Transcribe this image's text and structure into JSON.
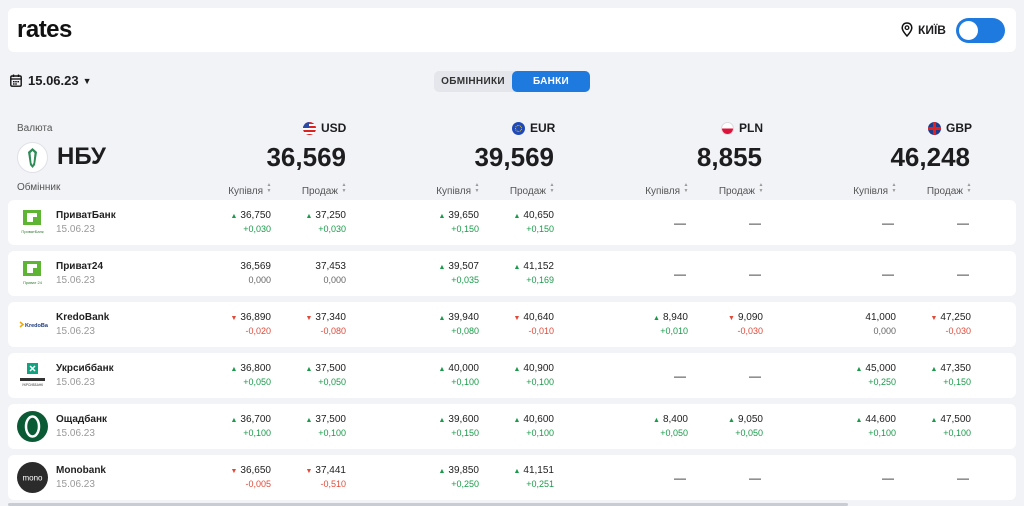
{
  "app": {
    "logo": "rates",
    "city": "КИЇВ"
  },
  "date": "15.06.23",
  "segment": {
    "exchangers": "ОБМІННИКИ",
    "banks": "БАНКИ"
  },
  "valuta_label": "Валюта",
  "nbu": {
    "title": "НБУ"
  },
  "currencies": [
    {
      "code": "USD",
      "nbu": "36,569"
    },
    {
      "code": "EUR",
      "nbu": "39,569"
    },
    {
      "code": "PLN",
      "nbu": "8,855"
    },
    {
      "code": "GBP",
      "nbu": "46,248"
    }
  ],
  "headers": {
    "exchanger": "Обмінник",
    "buy": "Купівля",
    "sell": "Продаж"
  },
  "banks": [
    {
      "name": "ПриватБанк",
      "date": "15.06.23",
      "rates": [
        {
          "buy": {
            "v": "36,750",
            "d": "+0,030",
            "t": "up"
          },
          "sell": {
            "v": "37,250",
            "d": "+0,030",
            "t": "up"
          }
        },
        {
          "buy": {
            "v": "39,650",
            "d": "+0,150",
            "t": "up"
          },
          "sell": {
            "v": "40,650",
            "d": "+0,150",
            "t": "up"
          }
        },
        null,
        null
      ]
    },
    {
      "name": "Приват24",
      "date": "15.06.23",
      "rates": [
        {
          "buy": {
            "v": "36,569",
            "d": "0,000",
            "t": "flat"
          },
          "sell": {
            "v": "37,453",
            "d": "0,000",
            "t": "flat"
          }
        },
        {
          "buy": {
            "v": "39,507",
            "d": "+0,035",
            "t": "up"
          },
          "sell": {
            "v": "41,152",
            "d": "+0,169",
            "t": "up"
          }
        },
        null,
        null
      ]
    },
    {
      "name": "KredoBank",
      "date": "15.06.23",
      "rates": [
        {
          "buy": {
            "v": "36,890",
            "d": "-0,020",
            "t": "down"
          },
          "sell": {
            "v": "37,340",
            "d": "-0,080",
            "t": "down"
          }
        },
        {
          "buy": {
            "v": "39,940",
            "d": "+0,080",
            "t": "up"
          },
          "sell": {
            "v": "40,640",
            "d": "-0,010",
            "t": "down"
          }
        },
        {
          "buy": {
            "v": "8,940",
            "d": "+0,010",
            "t": "up"
          },
          "sell": {
            "v": "9,090",
            "d": "-0,030",
            "t": "down"
          }
        },
        {
          "buy": {
            "v": "41,000",
            "d": "0,000",
            "t": "flat"
          },
          "sell": {
            "v": "47,250",
            "d": "-0,030",
            "t": "down"
          }
        }
      ]
    },
    {
      "name": "Укрсиббанк",
      "date": "15.06.23",
      "rates": [
        {
          "buy": {
            "v": "36,800",
            "d": "+0,050",
            "t": "up"
          },
          "sell": {
            "v": "37,500",
            "d": "+0,050",
            "t": "up"
          }
        },
        {
          "buy": {
            "v": "40,000",
            "d": "+0,100",
            "t": "up"
          },
          "sell": {
            "v": "40,900",
            "d": "+0,100",
            "t": "up"
          }
        },
        null,
        {
          "buy": {
            "v": "45,000",
            "d": "+0,250",
            "t": "up"
          },
          "sell": {
            "v": "47,350",
            "d": "+0,150",
            "t": "up"
          }
        }
      ]
    },
    {
      "name": "Ощадбанк",
      "date": "15.06.23",
      "rates": [
        {
          "buy": {
            "v": "36,700",
            "d": "+0,100",
            "t": "up"
          },
          "sell": {
            "v": "37,500",
            "d": "+0,100",
            "t": "up"
          }
        },
        {
          "buy": {
            "v": "39,600",
            "d": "+0,150",
            "t": "up"
          },
          "sell": {
            "v": "40,600",
            "d": "+0,100",
            "t": "up"
          }
        },
        {
          "buy": {
            "v": "8,400",
            "d": "+0,050",
            "t": "up"
          },
          "sell": {
            "v": "9,050",
            "d": "+0,050",
            "t": "up"
          }
        },
        {
          "buy": {
            "v": "44,600",
            "d": "+0,100",
            "t": "up"
          },
          "sell": {
            "v": "47,500",
            "d": "+0,100",
            "t": "up"
          }
        }
      ]
    },
    {
      "name": "Monobank",
      "date": "15.06.23",
      "rates": [
        {
          "buy": {
            "v": "36,650",
            "d": "-0,005",
            "t": "down"
          },
          "sell": {
            "v": "37,441",
            "d": "-0,510",
            "t": "down"
          }
        },
        {
          "buy": {
            "v": "39,850",
            "d": "+0,250",
            "t": "up"
          },
          "sell": {
            "v": "41,151",
            "d": "+0,251",
            "t": "up"
          }
        },
        null,
        null
      ]
    }
  ],
  "empty": "—",
  "logos": [
    "privatbank-logo",
    "privat24-logo",
    "kredobank-logo",
    "ukrsibbank-logo",
    "oschadbank-logo",
    "monobank-logo"
  ],
  "colors": {
    "accent": "#1f7ae0",
    "up": "#1a9a4a",
    "down": "#e04a3a"
  }
}
